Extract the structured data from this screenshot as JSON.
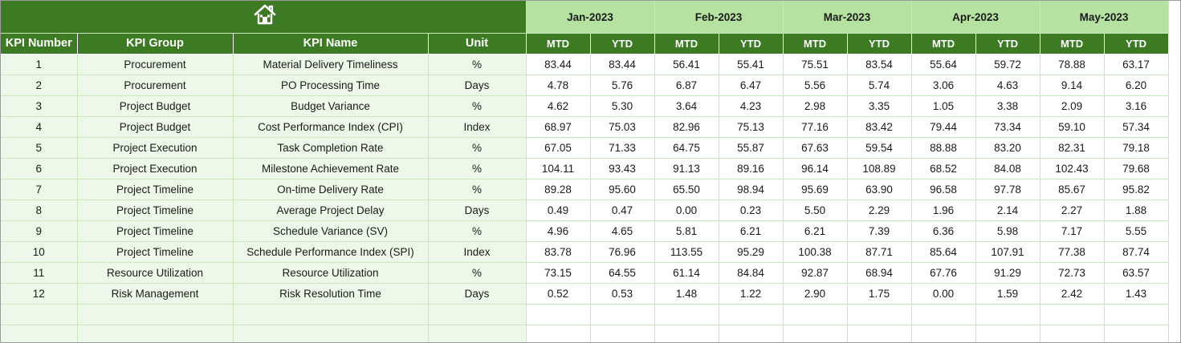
{
  "header": {
    "home_icon": "home-icon",
    "columns": [
      "KPI Number",
      "KPI Group",
      "KPI Name",
      "Unit"
    ],
    "months": [
      "Jan-2023",
      "Feb-2023",
      "Mar-2023",
      "Apr-2023",
      "May-2023"
    ],
    "mtd_label": "MTD",
    "ytd_label": "YTD"
  },
  "colors": {
    "banner_green": "#3d7a24",
    "month_header_green": "#b6e2a1",
    "info_cell_tint": "#eef8e8",
    "grid_line": "#c9e6bc"
  },
  "rows": [
    {
      "num": "1",
      "group": "Procurement",
      "name": "Material Delivery Timeliness",
      "unit": "%",
      "values": [
        "83.44",
        "83.44",
        "56.41",
        "55.41",
        "75.51",
        "83.54",
        "55.64",
        "59.72",
        "78.88",
        "63.17"
      ]
    },
    {
      "num": "2",
      "group": "Procurement",
      "name": "PO Processing Time",
      "unit": "Days",
      "values": [
        "4.78",
        "5.76",
        "6.87",
        "6.47",
        "5.56",
        "5.74",
        "3.06",
        "4.63",
        "9.14",
        "6.20"
      ]
    },
    {
      "num": "3",
      "group": "Project Budget",
      "name": "Budget Variance",
      "unit": "%",
      "values": [
        "4.62",
        "5.30",
        "3.64",
        "4.23",
        "2.98",
        "3.35",
        "1.05",
        "3.38",
        "2.09",
        "3.16"
      ]
    },
    {
      "num": "4",
      "group": "Project Budget",
      "name": "Cost Performance Index (CPI)",
      "unit": "Index",
      "values": [
        "68.97",
        "75.03",
        "82.96",
        "75.13",
        "77.16",
        "83.42",
        "79.44",
        "73.34",
        "59.10",
        "57.34"
      ]
    },
    {
      "num": "5",
      "group": "Project Execution",
      "name": "Task Completion Rate",
      "unit": "%",
      "values": [
        "67.05",
        "71.33",
        "64.75",
        "55.87",
        "67.63",
        "59.54",
        "88.88",
        "83.20",
        "82.31",
        "79.18"
      ]
    },
    {
      "num": "6",
      "group": "Project Execution",
      "name": "Milestone Achievement Rate",
      "unit": "%",
      "values": [
        "104.11",
        "93.43",
        "91.13",
        "89.16",
        "96.14",
        "108.89",
        "68.52",
        "84.08",
        "102.43",
        "79.68"
      ]
    },
    {
      "num": "7",
      "group": "Project Timeline",
      "name": "On-time Delivery Rate",
      "unit": "%",
      "values": [
        "89.28",
        "95.60",
        "65.50",
        "98.94",
        "95.69",
        "63.90",
        "96.58",
        "97.78",
        "85.67",
        "95.82"
      ]
    },
    {
      "num": "8",
      "group": "Project Timeline",
      "name": "Average Project Delay",
      "unit": "Days",
      "values": [
        "0.49",
        "0.47",
        "0.00",
        "0.23",
        "5.50",
        "2.29",
        "1.96",
        "2.14",
        "2.27",
        "1.88"
      ]
    },
    {
      "num": "9",
      "group": "Project Timeline",
      "name": "Schedule Variance (SV)",
      "unit": "%",
      "values": [
        "4.96",
        "4.65",
        "5.81",
        "6.21",
        "6.21",
        "7.39",
        "6.36",
        "5.98",
        "7.17",
        "5.55"
      ]
    },
    {
      "num": "10",
      "group": "Project Timeline",
      "name": "Schedule Performance Index (SPI)",
      "unit": "Index",
      "values": [
        "83.78",
        "76.96",
        "113.55",
        "95.29",
        "100.38",
        "87.71",
        "85.64",
        "107.91",
        "77.38",
        "87.74"
      ]
    },
    {
      "num": "11",
      "group": "Resource Utilization",
      "name": "Resource Utilization",
      "unit": "%",
      "values": [
        "73.15",
        "64.55",
        "61.14",
        "84.84",
        "92.87",
        "68.94",
        "67.76",
        "91.29",
        "72.73",
        "63.57"
      ]
    },
    {
      "num": "12",
      "group": "Risk Management",
      "name": "Risk Resolution Time",
      "unit": "Days",
      "values": [
        "0.52",
        "0.53",
        "1.48",
        "1.22",
        "2.90",
        "1.75",
        "0.00",
        "1.59",
        "2.42",
        "1.43"
      ]
    }
  ],
  "blank_rows": 2
}
